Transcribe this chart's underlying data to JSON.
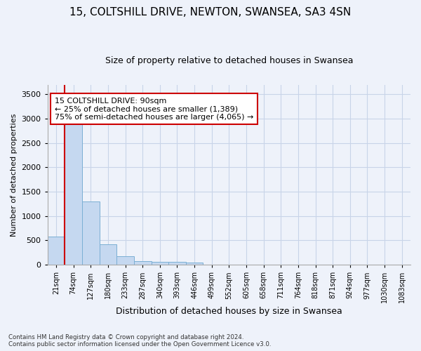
{
  "title1": "15, COLTSHILL DRIVE, NEWTON, SWANSEA, SA3 4SN",
  "title2": "Size of property relative to detached houses in Swansea",
  "xlabel": "Distribution of detached houses by size in Swansea",
  "ylabel": "Number of detached properties",
  "footnote": "Contains HM Land Registry data © Crown copyright and database right 2024.\nContains public sector information licensed under the Open Government Licence v3.0.",
  "bin_labels": [
    "21sqm",
    "74sqm",
    "127sqm",
    "180sqm",
    "233sqm",
    "287sqm",
    "340sqm",
    "393sqm",
    "446sqm",
    "499sqm",
    "552sqm",
    "605sqm",
    "658sqm",
    "711sqm",
    "764sqm",
    "818sqm",
    "871sqm",
    "924sqm",
    "977sqm",
    "1030sqm",
    "1083sqm"
  ],
  "bin_values": [
    575,
    2900,
    1300,
    420,
    170,
    75,
    55,
    55,
    50,
    0,
    0,
    0,
    0,
    0,
    0,
    0,
    0,
    0,
    0,
    0,
    0
  ],
  "bar_color": "#c5d8f0",
  "bar_edge_color": "#7bafd4",
  "grid_color": "#c8d4e8",
  "property_line_x": 0.5,
  "property_line_color": "#cc0000",
  "annotation_text": "15 COLTSHILL DRIVE: 90sqm\n← 25% of detached houses are smaller (1,389)\n75% of semi-detached houses are larger (4,065) →",
  "annotation_box_color": "#ffffff",
  "annotation_box_edge": "#cc0000",
  "ylim": [
    0,
    3700
  ],
  "yticks": [
    0,
    500,
    1000,
    1500,
    2000,
    2500,
    3000,
    3500
  ],
  "background_color": "#eef2fa",
  "title1_fontsize": 11,
  "title2_fontsize": 9
}
